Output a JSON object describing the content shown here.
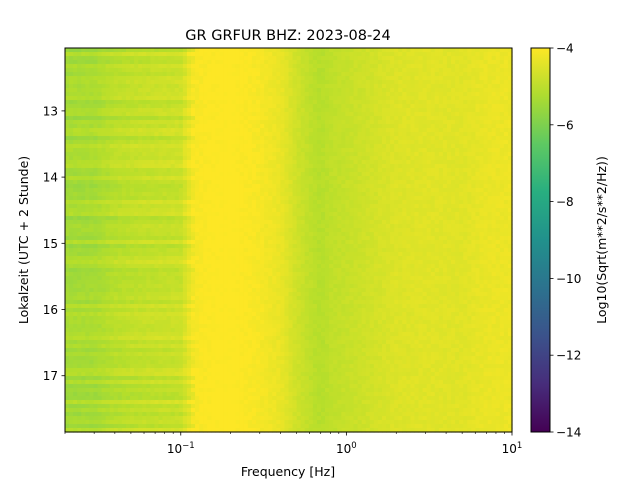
{
  "chart_data": {
    "type": "heatmap",
    "title": "GR GRFUR  BHZ: 2023-08-24",
    "xlabel": "Frequency [Hz]",
    "ylabel": "Lokalzeit (UTC + 2 Stunde)",
    "x_scale": "log",
    "xlim": [
      0.02,
      10
    ],
    "ylim": [
      12.05,
      17.85
    ],
    "y_inverted": true,
    "x_ticks": [
      {
        "value": 0.1,
        "base": "10",
        "exp": "−1"
      },
      {
        "value": 1,
        "base": "10",
        "exp": "0"
      },
      {
        "value": 10,
        "base": "10",
        "exp": "1"
      }
    ],
    "y_ticks": [
      "13",
      "14",
      "15",
      "16",
      "17"
    ],
    "colormap": "viridis",
    "colorbar": {
      "label": "Log10(Sqrt(m**2/s**2/Hz))",
      "min": -14,
      "max": -4,
      "ticks": [
        "−4",
        "−6",
        "−8",
        "−10",
        "−12",
        "−14"
      ],
      "tick_values": [
        -4,
        -6,
        -8,
        -10,
        -12,
        -14
      ]
    },
    "spectral_profile": {
      "frequency_hz": [
        0.02,
        0.03,
        0.04,
        0.06,
        0.08,
        0.1,
        0.12,
        0.15,
        0.2,
        0.3,
        0.4,
        0.5,
        0.6,
        0.7,
        0.8,
        1.0,
        1.5,
        2,
        3,
        5,
        7,
        10
      ],
      "log10_amplitude": [
        -5.35,
        -5.3,
        -5.05,
        -4.9,
        -4.85,
        -4.8,
        -4.1,
        -4.0,
        -3.95,
        -4.1,
        -4.3,
        -4.7,
        -4.95,
        -5.1,
        -4.95,
        -4.85,
        -4.65,
        -4.5,
        -4.45,
        -4.45,
        -4.3,
        -4.25
      ]
    },
    "grid": false
  }
}
